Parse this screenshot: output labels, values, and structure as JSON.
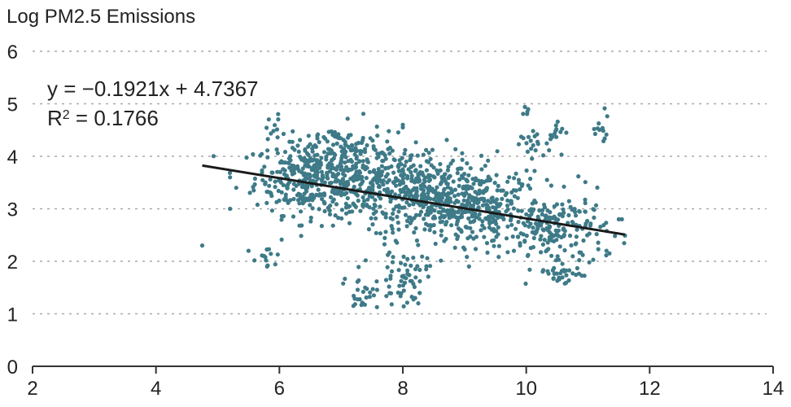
{
  "chart_data": {
    "type": "scatter",
    "title": "",
    "ylabel": "Log PM2.5 Emissions",
    "xlabel": "",
    "xlim": [
      2,
      14
    ],
    "ylim": [
      0,
      6
    ],
    "x_ticks": [
      "2",
      "4",
      "6",
      "8",
      "10",
      "12",
      "14"
    ],
    "y_ticks": [
      "0",
      "1",
      "2",
      "3",
      "4",
      "5",
      "6"
    ],
    "grid": "horizontal dotted",
    "annotation": {
      "equation": "y = −0.1921x + 4.7367",
      "r_squared_label": "R",
      "r_squared_sup": "2",
      "r_squared_value": " = 0.1766"
    },
    "trendline": {
      "slope": -0.1921,
      "intercept": 4.7367,
      "x_range": [
        4.75,
        11.6
      ]
    },
    "point_color": "#3e7a88",
    "clusters": [
      {
        "cx": 6.5,
        "cy": 3.6,
        "sx": 0.45,
        "sy": 0.35,
        "n": 320
      },
      {
        "cx": 7.6,
        "cy": 3.5,
        "sx": 0.55,
        "sy": 0.4,
        "n": 260
      },
      {
        "cx": 8.5,
        "cy": 3.2,
        "sx": 0.55,
        "sy": 0.4,
        "n": 320
      },
      {
        "cx": 9.3,
        "cy": 3.0,
        "sx": 0.5,
        "sy": 0.35,
        "n": 220
      },
      {
        "cx": 10.5,
        "cy": 2.6,
        "sx": 0.4,
        "sy": 0.35,
        "n": 180
      },
      {
        "cx": 7.0,
        "cy": 4.2,
        "sx": 0.35,
        "sy": 0.2,
        "n": 60
      },
      {
        "cx": 8.0,
        "cy": 1.7,
        "sx": 0.2,
        "sy": 0.25,
        "n": 60
      },
      {
        "cx": 7.3,
        "cy": 1.4,
        "sx": 0.15,
        "sy": 0.15,
        "n": 22
      },
      {
        "cx": 10.6,
        "cy": 1.8,
        "sx": 0.2,
        "sy": 0.15,
        "n": 30
      },
      {
        "cx": 5.8,
        "cy": 2.2,
        "sx": 0.08,
        "sy": 0.12,
        "n": 10
      },
      {
        "cx": 10.0,
        "cy": 4.1,
        "sx": 0.2,
        "sy": 0.25,
        "n": 25
      },
      {
        "cx": 11.2,
        "cy": 4.5,
        "sx": 0.1,
        "sy": 0.2,
        "n": 12
      },
      {
        "cx": 5.9,
        "cy": 4.55,
        "sx": 0.06,
        "sy": 0.12,
        "n": 10
      },
      {
        "cx": 9.95,
        "cy": 4.85,
        "sx": 0.05,
        "sy": 0.05,
        "n": 5
      },
      {
        "cx": 10.5,
        "cy": 4.4,
        "sx": 0.08,
        "sy": 0.15,
        "n": 10
      }
    ],
    "extra_points": [
      [
        4.75,
        2.3
      ],
      [
        5.2,
        3.0
      ],
      [
        5.2,
        3.6
      ],
      [
        5.3,
        3.4
      ],
      [
        5.5,
        2.2
      ],
      [
        5.75,
        2.1
      ],
      [
        5.8,
        1.9
      ],
      [
        8.0,
        4.55
      ],
      [
        8.0,
        4.6
      ],
      [
        8.25,
        1.2
      ],
      [
        8.2,
        1.3
      ],
      [
        11.55,
        2.8
      ],
      [
        11.5,
        2.8
      ],
      [
        11.3,
        2.2
      ],
      [
        11.35,
        2.15
      ],
      [
        9.8,
        2.2
      ],
      [
        9.9,
        2.3
      ],
      [
        7.2,
        1.15
      ],
      [
        7.35,
        1.2
      ]
    ]
  }
}
